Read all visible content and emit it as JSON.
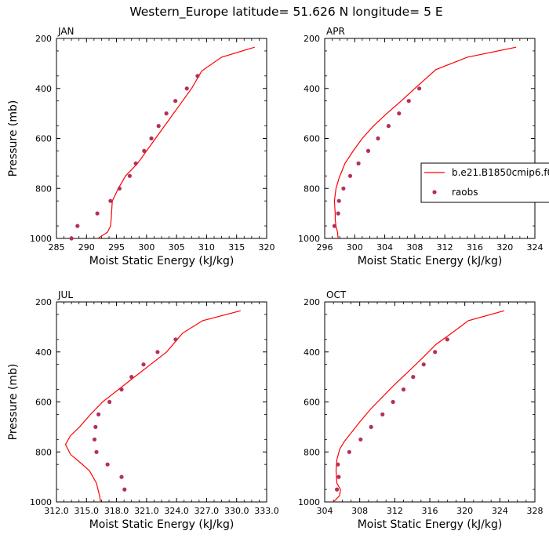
{
  "title": "Western_Europe  latitude= 51.626 N longitude= 5 E",
  "legend": {
    "model": "b.e21.B1850cmip6.f0",
    "obs": "raobs"
  },
  "colors": {
    "model": "#ff0000",
    "obs": "#b5305a"
  },
  "chart_data": [
    {
      "type": "line",
      "panel": "JAN",
      "xlabel": "Moist Static Energy (kJ/kg)",
      "ylabel": "Pressure (mb)",
      "xlim": [
        285,
        320
      ],
      "ylim": [
        1000,
        200
      ],
      "xticks": [
        "285",
        "290",
        "295",
        "300",
        "305",
        "310",
        "315",
        "320"
      ],
      "yticks": [
        "200",
        "400",
        "600",
        "800",
        "1000"
      ],
      "series": [
        {
          "name": "b.e21.B1850cmip6.f0",
          "kind": "line",
          "points": [
            [
              291.9,
              1000
            ],
            [
              293.5,
              975
            ],
            [
              294.0,
              950
            ],
            [
              294.1,
              925
            ],
            [
              294.3,
              850
            ],
            [
              295.3,
              800
            ],
            [
              296.5,
              750
            ],
            [
              298.5,
              700
            ],
            [
              300.0,
              650
            ],
            [
              301.5,
              600
            ],
            [
              303.0,
              550
            ],
            [
              304.5,
              500
            ],
            [
              306.0,
              450
            ],
            [
              307.5,
              400
            ],
            [
              309.2,
              330
            ],
            [
              312.5,
              275
            ],
            [
              318.0,
              235
            ]
          ]
        },
        {
          "name": "raobs",
          "kind": "points",
          "points": [
            [
              287.5,
              1000
            ],
            [
              288.5,
              950
            ],
            [
              291.8,
              900
            ],
            [
              294.0,
              850
            ],
            [
              295.5,
              800
            ],
            [
              297.2,
              750
            ],
            [
              298.2,
              700
            ],
            [
              299.6,
              650
            ],
            [
              300.8,
              600
            ],
            [
              302.0,
              550
            ],
            [
              303.3,
              500
            ],
            [
              304.8,
              450
            ],
            [
              306.7,
              400
            ],
            [
              308.5,
              350
            ]
          ]
        }
      ]
    },
    {
      "type": "line",
      "panel": "APR",
      "xlabel": "Moist Static Energy (kJ/kg)",
      "ylabel": "",
      "xlim": [
        296,
        324
      ],
      "ylim": [
        1000,
        200
      ],
      "xticks": [
        "296",
        "300",
        "304",
        "308",
        "312",
        "316",
        "320",
        "324"
      ],
      "yticks": [
        "200",
        "400",
        "600",
        "800",
        "1000"
      ],
      "series": [
        {
          "name": "b.e21.B1850cmip6.f0",
          "kind": "line",
          "points": [
            [
              297.8,
              1000
            ],
            [
              297.7,
              975
            ],
            [
              297.5,
              950
            ],
            [
              297.4,
              925
            ],
            [
              297.4,
              900
            ],
            [
              297.3,
              850
            ],
            [
              297.5,
              800
            ],
            [
              297.9,
              760
            ],
            [
              298.7,
              700
            ],
            [
              299.8,
              650
            ],
            [
              301.0,
              600
            ],
            [
              302.5,
              550
            ],
            [
              304.3,
              500
            ],
            [
              306.2,
              450
            ],
            [
              308.0,
              400
            ],
            [
              310.8,
              325
            ],
            [
              315.0,
              275
            ],
            [
              321.5,
              235
            ]
          ]
        },
        {
          "name": "raobs",
          "kind": "points",
          "points": [
            [
              297.3,
              950
            ],
            [
              297.8,
              900
            ],
            [
              297.9,
              850
            ],
            [
              298.5,
              800
            ],
            [
              299.4,
              750
            ],
            [
              300.5,
              700
            ],
            [
              301.8,
              650
            ],
            [
              303.1,
              600
            ],
            [
              304.5,
              550
            ],
            [
              305.9,
              500
            ],
            [
              307.2,
              450
            ],
            [
              308.6,
              400
            ]
          ]
        }
      ]
    },
    {
      "type": "line",
      "panel": "JUL",
      "xlabel": "Moist Static Energy (kJ/kg)",
      "ylabel": "Pressure (mb)",
      "xlim": [
        312,
        333
      ],
      "ylim": [
        1000,
        200
      ],
      "xticks": [
        "312.0",
        "315.0",
        "318.0",
        "321.0",
        "324.0",
        "327.0",
        "330.0",
        "333.0"
      ],
      "yticks": [
        "200",
        "400",
        "600",
        "800",
        "1000"
      ],
      "series": [
        {
          "name": "b.e21.B1850cmip6.f0",
          "kind": "line",
          "points": [
            [
              316.4,
              1000
            ],
            [
              316.3,
              975
            ],
            [
              316.0,
              925
            ],
            [
              315.3,
              875
            ],
            [
              314.3,
              840
            ],
            [
              313.4,
              810
            ],
            [
              312.9,
              770
            ],
            [
              313.4,
              735
            ],
            [
              314.3,
              700
            ],
            [
              315.4,
              650
            ],
            [
              316.6,
              600
            ],
            [
              318.2,
              550
            ],
            [
              319.8,
              500
            ],
            [
              321.4,
              450
            ],
            [
              323.0,
              400
            ],
            [
              324.6,
              325
            ],
            [
              326.6,
              275
            ],
            [
              330.4,
              235
            ]
          ]
        },
        {
          "name": "raobs",
          "kind": "points",
          "points": [
            [
              318.8,
              950
            ],
            [
              318.5,
              900
            ],
            [
              317.1,
              850
            ],
            [
              316.0,
              800
            ],
            [
              315.8,
              750
            ],
            [
              315.9,
              700
            ],
            [
              316.2,
              650
            ],
            [
              317.3,
              600
            ],
            [
              318.5,
              550
            ],
            [
              319.5,
              500
            ],
            [
              320.7,
              450
            ],
            [
              322.1,
              400
            ],
            [
              323.9,
              350
            ]
          ]
        }
      ]
    },
    {
      "type": "line",
      "panel": "OCT",
      "xlabel": "Moist Static Energy (kJ/kg)",
      "ylabel": "",
      "xlim": [
        304,
        328
      ],
      "ylim": [
        1000,
        200
      ],
      "xticks": [
        "304",
        "308",
        "312",
        "316",
        "320",
        "324",
        "328"
      ],
      "yticks": [
        "200",
        "400",
        "600",
        "800",
        "1000"
      ],
      "series": [
        {
          "name": "b.e21.B1850cmip6.f0",
          "kind": "line",
          "points": [
            [
              305.0,
              1000
            ],
            [
              305.7,
              975
            ],
            [
              305.8,
              950
            ],
            [
              305.4,
              925
            ],
            [
              305.3,
              875
            ],
            [
              305.4,
              830
            ],
            [
              305.7,
              790
            ],
            [
              306.2,
              760
            ],
            [
              307.0,
              725
            ],
            [
              308.0,
              680
            ],
            [
              309.2,
              630
            ],
            [
              310.6,
              580
            ],
            [
              312.0,
              530
            ],
            [
              313.5,
              480
            ],
            [
              315.0,
              430
            ],
            [
              316.7,
              370
            ],
            [
              318.5,
              325
            ],
            [
              320.4,
              275
            ],
            [
              324.5,
              235
            ]
          ]
        },
        {
          "name": "raobs",
          "kind": "points",
          "points": [
            [
              305.4,
              950
            ],
            [
              305.6,
              900
            ],
            [
              305.5,
              850
            ],
            [
              306.8,
              800
            ],
            [
              308.1,
              750
            ],
            [
              309.3,
              700
            ],
            [
              310.6,
              650
            ],
            [
              311.8,
              600
            ],
            [
              313.0,
              550
            ],
            [
              314.1,
              500
            ],
            [
              315.3,
              450
            ],
            [
              316.6,
              400
            ],
            [
              318.0,
              350
            ]
          ]
        }
      ]
    }
  ]
}
